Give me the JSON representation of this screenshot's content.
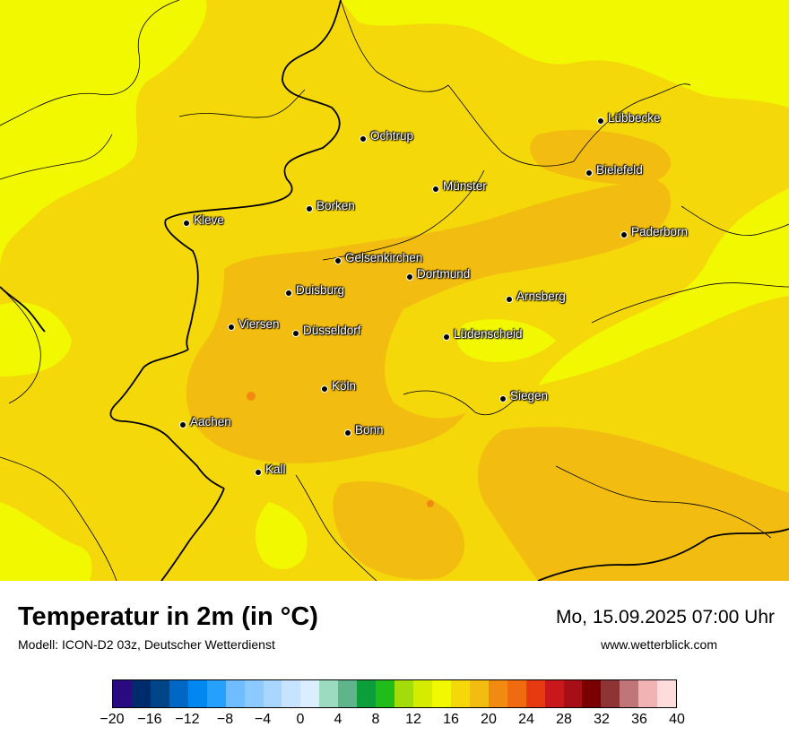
{
  "map": {
    "cities": [
      {
        "name": "Lübbecke",
        "icon": "city-dot-icon"
      },
      {
        "name": "Ochtrup",
        "icon": "city-dot-icon"
      },
      {
        "name": "Bielefeld",
        "icon": "city-dot-icon"
      },
      {
        "name": "Münster",
        "icon": "city-dot-icon"
      },
      {
        "name": "Borken",
        "icon": "city-dot-icon"
      },
      {
        "name": "Kleve",
        "icon": "city-dot-icon"
      },
      {
        "name": "Paderborn",
        "icon": "city-dot-icon"
      },
      {
        "name": "Gelsenkirchen",
        "icon": "city-dot-icon"
      },
      {
        "name": "Dortmund",
        "icon": "city-dot-icon"
      },
      {
        "name": "Duisburg",
        "icon": "city-dot-icon"
      },
      {
        "name": "Arnsberg",
        "icon": "city-dot-icon"
      },
      {
        "name": "Viersen",
        "icon": "city-dot-icon"
      },
      {
        "name": "Düsseldorf",
        "icon": "city-dot-icon"
      },
      {
        "name": "Lüdenscheid",
        "icon": "city-dot-icon"
      },
      {
        "name": "Köln",
        "icon": "city-dot-icon"
      },
      {
        "name": "Siegen",
        "icon": "city-dot-icon"
      },
      {
        "name": "Aachen",
        "icon": "city-dot-icon"
      },
      {
        "name": "Bonn",
        "icon": "city-dot-icon"
      },
      {
        "name": "Kall",
        "icon": "city-dot-icon"
      }
    ],
    "colors": {
      "base": "#f5d80a",
      "warm": "#f2bd10",
      "cool": "#f2f800",
      "hot_spot": "#f08a10"
    }
  },
  "footer": {
    "title": "Temperatur in 2m (in °C)",
    "subtitle": "Modell: ICON-D2 03z, Deutscher Wetterdienst",
    "datetime": "Mo, 15.09.2025 07:00 Uhr",
    "website": "www.wetterblick.com"
  },
  "legend": {
    "colors": [
      "#2a0a80",
      "#002b6b",
      "#00448a",
      "#0068c4",
      "#0088f0",
      "#26a0ff",
      "#6fbcff",
      "#8cc9ff",
      "#a8d6ff",
      "#c6e4ff",
      "#daeeff",
      "#9ddbc0",
      "#5fb48c",
      "#0d9e3c",
      "#20bd1a",
      "#a2dc0a",
      "#d4ec00",
      "#f2f800",
      "#f5d80a",
      "#f2bd10",
      "#f08a10",
      "#f06a10",
      "#e83a10",
      "#c8181c",
      "#a80e18",
      "#7a0000",
      "#8e3434",
      "#c07676",
      "#f0b4b4",
      "#ffdcdc"
    ],
    "ticks": [
      "−20",
      "−16",
      "−12",
      "−8",
      "−4",
      "0",
      "4",
      "8",
      "12",
      "16",
      "20",
      "24",
      "28",
      "32",
      "36",
      "40"
    ]
  }
}
